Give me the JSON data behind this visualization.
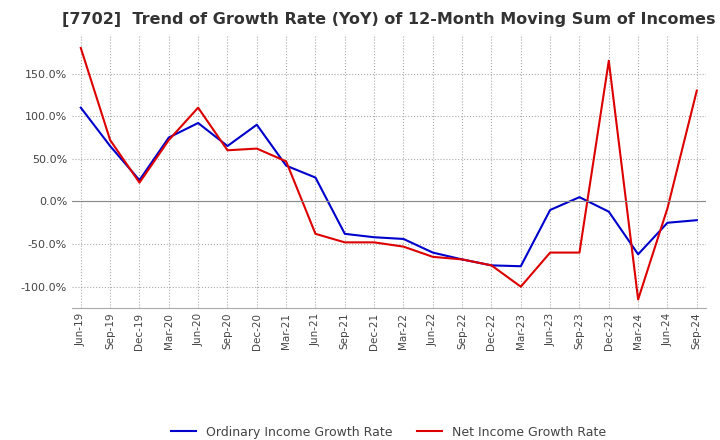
{
  "title": "[7702]  Trend of Growth Rate (YoY) of 12-Month Moving Sum of Incomes",
  "title_fontsize": 11.5,
  "ylim": [
    -125,
    195
  ],
  "yticks": [
    -100,
    -50,
    0,
    50,
    100,
    150
  ],
  "background_color": "#ffffff",
  "grid_color": "#aaaaaa",
  "line_blue": "#0000cc",
  "line_red": "#dd0000",
  "legend_labels": [
    "Ordinary Income Growth Rate",
    "Net Income Growth Rate"
  ],
  "x_labels": [
    "Jun-19",
    "Sep-19",
    "Dec-19",
    "Mar-20",
    "Jun-20",
    "Sep-20",
    "Dec-20",
    "Mar-21",
    "Jun-21",
    "Sep-21",
    "Dec-21",
    "Mar-22",
    "Jun-22",
    "Sep-22",
    "Dec-22",
    "Mar-23",
    "Jun-23",
    "Sep-23",
    "Dec-23",
    "Mar-24",
    "Jun-24",
    "Sep-24"
  ],
  "ordinary_income": [
    110,
    65,
    25,
    75,
    92,
    65,
    90,
    42,
    28,
    -38,
    -42,
    -44,
    -60,
    -68,
    -75,
    -76,
    -10,
    5,
    -12,
    -62,
    -25,
    -22
  ],
  "net_income": [
    180,
    72,
    22,
    72,
    110,
    60,
    62,
    47,
    -38,
    -48,
    -48,
    -53,
    -65,
    -68,
    -75,
    -100,
    -60,
    -60,
    165,
    -115,
    -8,
    130
  ]
}
